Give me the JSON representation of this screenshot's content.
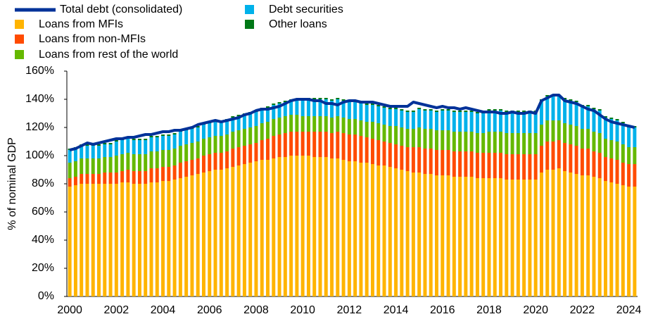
{
  "chart_data": {
    "type": "stacked-bar",
    "y_label": "% of nominal GDP",
    "categories": [
      "2000",
      null,
      null,
      null,
      null,
      null,
      null,
      null,
      "2002",
      null,
      null,
      null,
      null,
      null,
      null,
      null,
      "2004",
      null,
      null,
      null,
      null,
      null,
      null,
      null,
      "2006",
      null,
      null,
      null,
      null,
      null,
      null,
      null,
      "2008",
      null,
      null,
      null,
      null,
      null,
      null,
      null,
      "2010",
      null,
      null,
      null,
      null,
      null,
      null,
      null,
      "2012",
      null,
      null,
      null,
      null,
      null,
      null,
      null,
      "2014",
      null,
      null,
      null,
      null,
      null,
      null,
      null,
      "2016",
      null,
      null,
      null,
      null,
      null,
      null,
      null,
      "2018",
      null,
      null,
      null,
      null,
      null,
      null,
      null,
      "2020",
      null,
      null,
      null,
      null,
      null,
      null,
      null,
      "2022",
      null,
      null,
      null,
      null,
      null,
      null,
      null,
      "2024",
      null
    ],
    "ylim": [
      0,
      160
    ],
    "yticks": [
      {
        "value": 0,
        "label": "0%"
      },
      {
        "value": 20,
        "label": "20%"
      },
      {
        "value": 40,
        "label": "40%"
      },
      {
        "value": 60,
        "label": "60%"
      },
      {
        "value": 80,
        "label": "80%"
      },
      {
        "value": 100,
        "label": "100%"
      },
      {
        "value": 120,
        "label": "120%"
      },
      {
        "value": 140,
        "label": "140%"
      },
      {
        "value": 160,
        "label": "160%"
      }
    ],
    "line_series": {
      "name": "Total debt (consolidated)",
      "color": "#003299",
      "values": [
        104,
        105,
        107,
        109,
        108,
        109,
        110,
        111,
        112,
        112,
        113,
        113,
        114,
        115,
        115,
        116,
        117,
        117,
        118,
        118,
        119,
        120,
        122,
        123,
        124,
        125,
        124,
        125,
        126,
        127,
        129,
        130,
        132,
        133,
        133,
        134,
        135,
        137,
        139,
        140,
        140,
        140,
        139,
        139,
        137,
        137,
        136,
        138,
        139,
        139,
        138,
        138,
        138,
        137,
        136,
        135,
        135,
        135,
        135,
        138,
        137,
        136,
        135,
        134,
        135,
        134,
        134,
        133,
        134,
        133,
        132,
        131,
        131,
        131,
        130,
        130,
        131,
        130,
        130,
        131,
        130,
        139,
        141,
        143,
        143,
        139,
        138,
        137,
        135,
        133,
        132,
        129,
        126,
        124,
        123,
        122,
        121,
        120
      ]
    },
    "series": [
      {
        "name": "Loans from MFIs",
        "color": "#ffb400",
        "values": [
          78,
          79,
          80,
          80,
          80,
          80,
          80,
          80,
          80,
          81,
          81,
          80,
          80,
          80,
          81,
          81,
          82,
          82,
          83,
          84,
          85,
          86,
          87,
          88,
          89,
          90,
          90,
          91,
          92,
          93,
          94,
          95,
          96,
          97,
          97,
          98,
          99,
          99,
          100,
          100,
          100,
          100,
          99,
          99,
          99,
          98,
          98,
          97,
          96,
          96,
          95,
          95,
          94,
          93,
          93,
          92,
          91,
          90,
          89,
          88,
          88,
          87,
          87,
          86,
          86,
          86,
          85,
          85,
          85,
          85,
          84,
          84,
          84,
          84,
          84,
          83,
          83,
          83,
          83,
          83,
          83,
          88,
          90,
          90,
          91,
          89,
          88,
          87,
          86,
          86,
          85,
          84,
          82,
          81,
          80,
          79,
          78,
          78
        ]
      },
      {
        "name": "Loans from non-MFIs",
        "color": "#ff4b00",
        "values": [
          6,
          6,
          7,
          7,
          7,
          7,
          8,
          8,
          8,
          8,
          9,
          9,
          9,
          9,
          10,
          10,
          10,
          10,
          10,
          11,
          11,
          11,
          11,
          12,
          12,
          12,
          12,
          12,
          13,
          13,
          13,
          13,
          13,
          14,
          15,
          16,
          16,
          17,
          17,
          17,
          17,
          17,
          18,
          18,
          18,
          18,
          19,
          19,
          19,
          19,
          19,
          18,
          18,
          18,
          17,
          17,
          17,
          17,
          17,
          18,
          18,
          18,
          18,
          18,
          18,
          18,
          18,
          18,
          18,
          18,
          18,
          18,
          18,
          18,
          18,
          18,
          18,
          18,
          18,
          18,
          18,
          19,
          20,
          20,
          20,
          20,
          20,
          20,
          19,
          19,
          18,
          18,
          17,
          17,
          17,
          16,
          16,
          16
        ]
      },
      {
        "name": "Loans from rest of the world",
        "color": "#65b800",
        "values": [
          11,
          11,
          11,
          11,
          11,
          11,
          11,
          11,
          12,
          12,
          12,
          12,
          12,
          12,
          12,
          12,
          12,
          12,
          12,
          12,
          12,
          12,
          12,
          12,
          12,
          12,
          12,
          12,
          12,
          12,
          12,
          12,
          12,
          12,
          12,
          12,
          12,
          12,
          12,
          12,
          11,
          11,
          11,
          11,
          11,
          11,
          11,
          11,
          11,
          11,
          11,
          11,
          12,
          12,
          12,
          12,
          13,
          13,
          13,
          13,
          14,
          14,
          14,
          14,
          14,
          14,
          14,
          14,
          14,
          14,
          14,
          14,
          15,
          15,
          15,
          15,
          15,
          15,
          15,
          15,
          15,
          15,
          15,
          15,
          14,
          14,
          14,
          14,
          14,
          14,
          14,
          14,
          13,
          13,
          13,
          13,
          12,
          12
        ]
      },
      {
        "name": "Debt securities",
        "color": "#00b1ea",
        "values": [
          9,
          9,
          9,
          9,
          9,
          9,
          9,
          9,
          10,
          10,
          10,
          10,
          10,
          10,
          10,
          10,
          10,
          10,
          10,
          10,
          10,
          10,
          10,
          10,
          10,
          10,
          10,
          10,
          10,
          10,
          10,
          10,
          10,
          10,
          10,
          10,
          10,
          10,
          10,
          10,
          12,
          12,
          12,
          12,
          12,
          12,
          12,
          12,
          12,
          12,
          12,
          12,
          12,
          12,
          12,
          12,
          12,
          12,
          12,
          12,
          13,
          13,
          13,
          13,
          14,
          14,
          14,
          14,
          14,
          14,
          14,
          14,
          15,
          15,
          15,
          15,
          15,
          15,
          15,
          15,
          15,
          17,
          17,
          17,
          17,
          17,
          17,
          17,
          16,
          16,
          16,
          16,
          15,
          15,
          15,
          15,
          14,
          14
        ]
      },
      {
        "name": "Other loans",
        "color": "#007816",
        "values": [
          1,
          1,
          1,
          1,
          1,
          1,
          1,
          1,
          1,
          1,
          1,
          1,
          1,
          1,
          1,
          1,
          1,
          1,
          1,
          1,
          1,
          1,
          1,
          1,
          1,
          1,
          1,
          1,
          1,
          1,
          1,
          1,
          1,
          1,
          1,
          1,
          1,
          1,
          1,
          1,
          1,
          1,
          1,
          1,
          1,
          1,
          1,
          1,
          1,
          1,
          1,
          1,
          1,
          1,
          1,
          1,
          1,
          1,
          1,
          1,
          1,
          1,
          1,
          1,
          1,
          1,
          1,
          1,
          1,
          1,
          1,
          1,
          1,
          1,
          1,
          1,
          1,
          1,
          1,
          1,
          1,
          1,
          1,
          1,
          1,
          1,
          1,
          1,
          1,
          1,
          1,
          1,
          1,
          1,
          1,
          1,
          1,
          1
        ]
      }
    ]
  }
}
